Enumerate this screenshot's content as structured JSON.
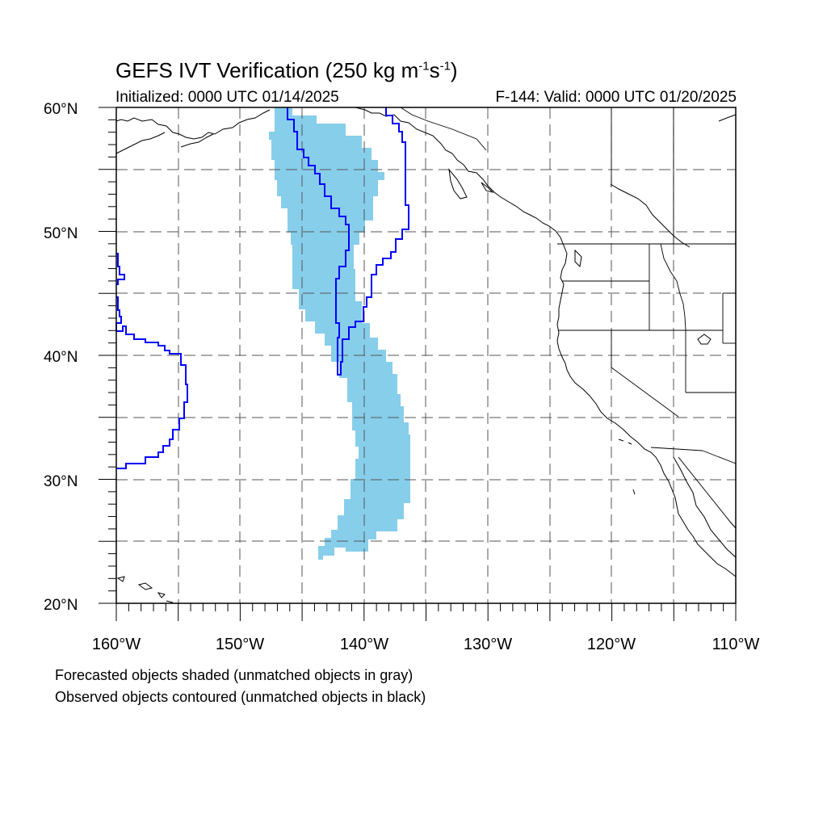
{
  "title": {
    "main": "GEFS IVT Verification (250 kg m",
    "exp1": "-1",
    "mid": "s",
    "exp2": "-1",
    "close": ")"
  },
  "initialized": "Initialized: 0000 UTC 01/14/2025",
  "valid": "F-144: Valid: 0000 UTC 01/20/2025",
  "notes": [
    "Forecasted objects shaded (unmatched objects in gray)",
    "Observed objects contoured (unmatched objects in black)"
  ],
  "map": {
    "extent": {
      "lon_min": -160,
      "lon_max": -110,
      "lat_min": 20,
      "lat_max": 60
    },
    "lat_labels": [
      "60°N",
      "50°N",
      "40°N",
      "30°N",
      "20°N"
    ],
    "lon_labels": [
      "160°W",
      "150°W",
      "140°W",
      "130°W",
      "120°W",
      "110°W"
    ],
    "gridlines": "dashed, every 5°",
    "colors": {
      "forecast_fill": "#87ceeb",
      "observed_contour": "#0000ff",
      "coastline": "#000000"
    },
    "layers": {
      "forecast": "Forecasted object",
      "observed": "Observed object"
    }
  }
}
